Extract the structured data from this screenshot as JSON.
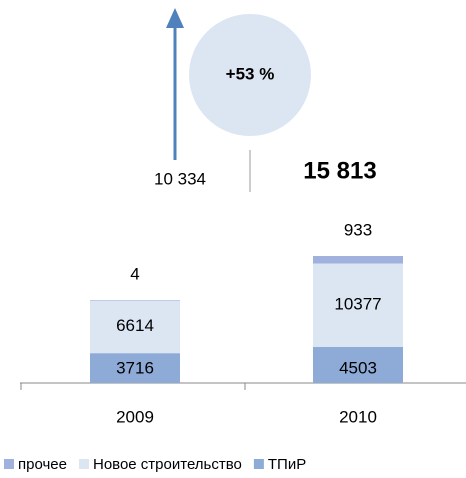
{
  "chart_data": {
    "type": "stacked_bar",
    "categories": [
      "2009",
      "2010"
    ],
    "series": [
      {
        "name": "ТПиР",
        "color": "#8eabd8",
        "values": [
          3716,
          4503
        ]
      },
      {
        "name": "Новое строительство",
        "color": "#dce6f2",
        "values": [
          6614,
          10377
        ]
      },
      {
        "name": "прочее",
        "color": "#9fb1dc",
        "values": [
          4,
          933
        ]
      }
    ],
    "legend_order": [
      2,
      1,
      0
    ],
    "annotations": {
      "growth": "+53 %",
      "total_2009": "10 334",
      "total_2010": "15 813"
    }
  }
}
